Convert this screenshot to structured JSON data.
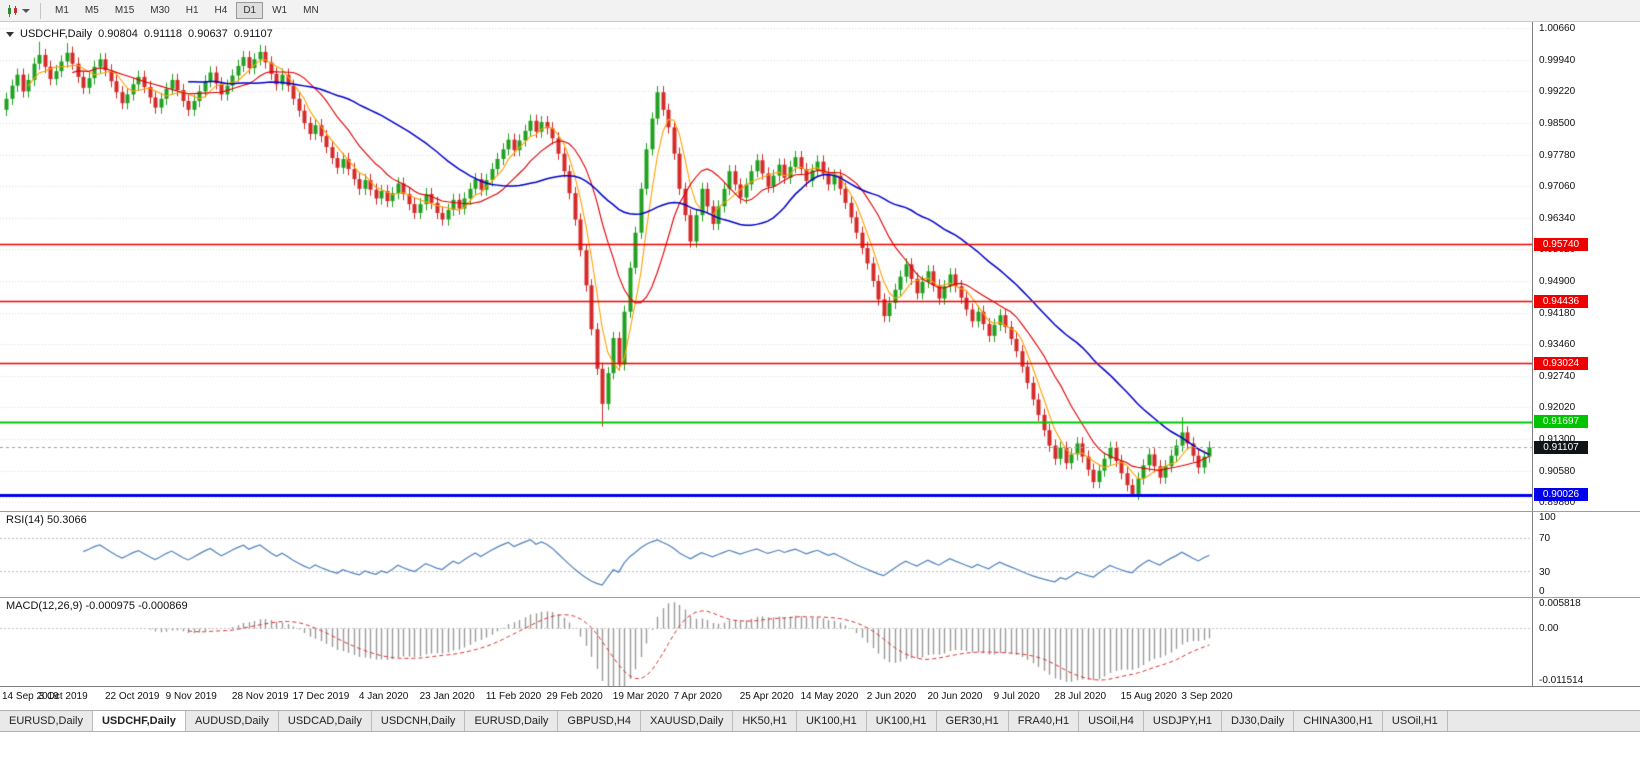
{
  "toolbar": {
    "timeframes": [
      "M1",
      "M5",
      "M15",
      "M30",
      "H1",
      "H4",
      "D1",
      "W1",
      "MN"
    ],
    "active_timeframe": "D1"
  },
  "legend": {
    "symbol": "USDCHF,Daily",
    "open": "0.90804",
    "high": "0.91118",
    "low": "0.90637",
    "close": "0.91107"
  },
  "tabs": {
    "active_index": 1,
    "items": [
      "EURUSD,Daily",
      "USDCHF,Daily",
      "AUDUSD,Daily",
      "USDCAD,Daily",
      "USDCNH,Daily",
      "EURUSD,Daily",
      "GBPUSD,H4",
      "XAUUSD,Daily",
      "HK50,H1",
      "UK100,H1",
      "UK100,H1",
      "GER30,H1",
      "FRA40,H1",
      "USOil,H4",
      "USDJPY,H1",
      "DJ30,Daily",
      "CHINA300,H1",
      "USOil,H1"
    ],
    "active_label": "USDCHF,Daily"
  },
  "chart_data": {
    "type": "candlestick",
    "symbol": "USDCHF",
    "timeframe": "Daily",
    "current_bar": {
      "open": 0.90804,
      "high": 0.91118,
      "low": 0.90637,
      "close": 0.91107
    },
    "y_axis_labels": [
      "1.00660",
      "0.99940",
      "0.99220",
      "0.98500",
      "0.97780",
      "0.97060",
      "0.96340",
      "0.95620",
      "0.94900",
      "0.94180",
      "0.93460",
      "0.92740",
      "0.92020",
      "0.91300",
      "0.90580",
      "0.89860"
    ],
    "y_range": [
      0.8966,
      1.008
    ],
    "x_dates": [
      "14 Sep 2019",
      "3 Oct 2019",
      "22 Oct 2019",
      "9 Nov 2019",
      "28 Nov 2019",
      "17 Dec 2019",
      "4 Jan 2020",
      "23 Jan 2020",
      "11 Feb 2020",
      "29 Feb 2020",
      "19 Mar 2020",
      "7 Apr 2020",
      "25 Apr 2020",
      "14 May 2020",
      "2 Jun 2020",
      "20 Jun 2020",
      "9 Jul 2020",
      "28 Jul 2020",
      "15 Aug 2020",
      "3 Sep 2020"
    ],
    "closes": [
      0.9905,
      0.9935,
      0.996,
      0.9922,
      0.9948,
      0.9985,
      1.0005,
      0.9978,
      0.995,
      0.9968,
      0.999,
      1.001,
      0.9985,
      0.9955,
      0.993,
      0.9952,
      0.9978,
      0.9995,
      0.997,
      0.9945,
      0.992,
      0.9895,
      0.9915,
      0.9938,
      0.9955,
      0.9932,
      0.9908,
      0.9885,
      0.9905,
      0.9928,
      0.9948,
      0.9925,
      0.99,
      0.988,
      0.99,
      0.9922,
      0.9945,
      0.9965,
      0.994,
      0.9915,
      0.9935,
      0.9958,
      0.998,
      1.0,
      0.9975,
      0.9995,
      1.0012,
      0.9988,
      0.9962,
      0.9938,
      0.996,
      0.9935,
      0.9905,
      0.9878,
      0.985,
      0.9825,
      0.9845,
      0.982,
      0.9795,
      0.977,
      0.9748,
      0.9768,
      0.9745,
      0.9722,
      0.97,
      0.972,
      0.9698,
      0.9678,
      0.9695,
      0.9672,
      0.969,
      0.9712,
      0.9688,
      0.9665,
      0.9645,
      0.9665,
      0.9688,
      0.9668,
      0.9645,
      0.963,
      0.9652,
      0.9675,
      0.9655,
      0.9678,
      0.97,
      0.9722,
      0.9698,
      0.972,
      0.9745,
      0.9768,
      0.979,
      0.9812,
      0.9788,
      0.981,
      0.9832,
      0.9855,
      0.983,
      0.9852,
      0.9838,
      0.9815,
      0.978,
      0.974,
      0.969,
      0.963,
      0.956,
      0.948,
      0.938,
      0.929,
      0.921,
      0.928,
      0.936,
      0.93,
      0.942,
      0.952,
      0.96,
      0.97,
      0.979,
      0.986,
      0.992,
      0.988,
      0.984,
      0.978,
      0.97,
      0.964,
      0.958,
      0.964,
      0.97,
      0.966,
      0.962,
      0.966,
      0.97,
      0.974,
      0.971,
      0.968,
      0.971,
      0.974,
      0.9765,
      0.9735,
      0.9705,
      0.973,
      0.9755,
      0.9725,
      0.975,
      0.9772,
      0.9745,
      0.9718,
      0.9742,
      0.9762,
      0.9735,
      0.971,
      0.973,
      0.97,
      0.9668,
      0.9635,
      0.96,
      0.9565,
      0.953,
      0.949,
      0.9448,
      0.941,
      0.944,
      0.947,
      0.95,
      0.9528,
      0.9495,
      0.9462,
      0.9488,
      0.9512,
      0.948,
      0.945,
      0.9478,
      0.9505,
      0.9478,
      0.9452,
      0.9425,
      0.9398,
      0.942,
      0.9392,
      0.9365,
      0.939,
      0.9412,
      0.9385,
      0.9358,
      0.933,
      0.9295,
      0.9258,
      0.922,
      0.9185,
      0.915,
      0.9115,
      0.9085,
      0.911,
      0.9075,
      0.9095,
      0.912,
      0.909,
      0.906,
      0.9032,
      0.9058,
      0.9085,
      0.911,
      0.908,
      0.9052,
      0.9025,
      0.9005,
      0.904,
      0.907,
      0.9095,
      0.9068,
      0.9042,
      0.9068,
      0.9092,
      0.9115,
      0.9145,
      0.912,
      0.9092,
      0.9065,
      0.909,
      0.91107
    ],
    "wick": 0.0014,
    "special_wicks": {
      "6": [
        1.0035,
        null
      ],
      "11": [
        1.0032,
        null
      ],
      "46": [
        1.0028,
        null
      ],
      "108": [
        null,
        0.9158
      ],
      "204": [
        null,
        0.8998
      ],
      "213": [
        0.918,
        null
      ]
    },
    "candle_colors": {
      "up": "#21a121",
      "down": "#d42a2a"
    },
    "moving_averages": [
      {
        "name": "ma-fast",
        "period": 5,
        "color": "#ffa000",
        "width": 1.1
      },
      {
        "name": "ma-mid",
        "period": 13,
        "color": "#e00000",
        "width": 1.1
      },
      {
        "name": "ma-slow",
        "period": 34,
        "color": "#0000c8",
        "width": 1.5
      }
    ],
    "h_lines": [
      {
        "label": "0.95740",
        "value": 0.9574,
        "color": "#ee0000",
        "width": 1.5
      },
      {
        "label": "0.94436",
        "value": 0.94436,
        "color": "#ee0000",
        "width": 1.5
      },
      {
        "label": "0.93024",
        "value": 0.93024,
        "color": "#ee0000",
        "width": 1.5
      },
      {
        "label": "0.91697",
        "value": 0.91697,
        "color": "#00c400",
        "width": 2
      },
      {
        "label": "0.90026",
        "value": 0.90026,
        "color": "#0000ee",
        "width": 3
      }
    ],
    "current_price": {
      "label": "0.91107",
      "value": 0.91107,
      "tag_bg": "#101418"
    },
    "rsi": {
      "label": "RSI(14) 50.3066",
      "value": 50.3066,
      "period": 14,
      "levels": [
        70,
        30
      ],
      "scale_labels": [
        "100",
        "70",
        "30",
        "0"
      ],
      "color": "#4f81bd"
    },
    "macd": {
      "label": "MACD(12,26,9) -0.000975 -0.000869",
      "values": [
        -0.000975,
        -0.000869
      ],
      "fast": 12,
      "slow": 26,
      "signal": 9,
      "scale_labels": [
        "0.005818",
        "0.00",
        "-0.011514"
      ],
      "range": [
        -0.011514,
        0.005818
      ],
      "hist_color": "#9a9a9a",
      "signal_color": "#e03030"
    }
  }
}
